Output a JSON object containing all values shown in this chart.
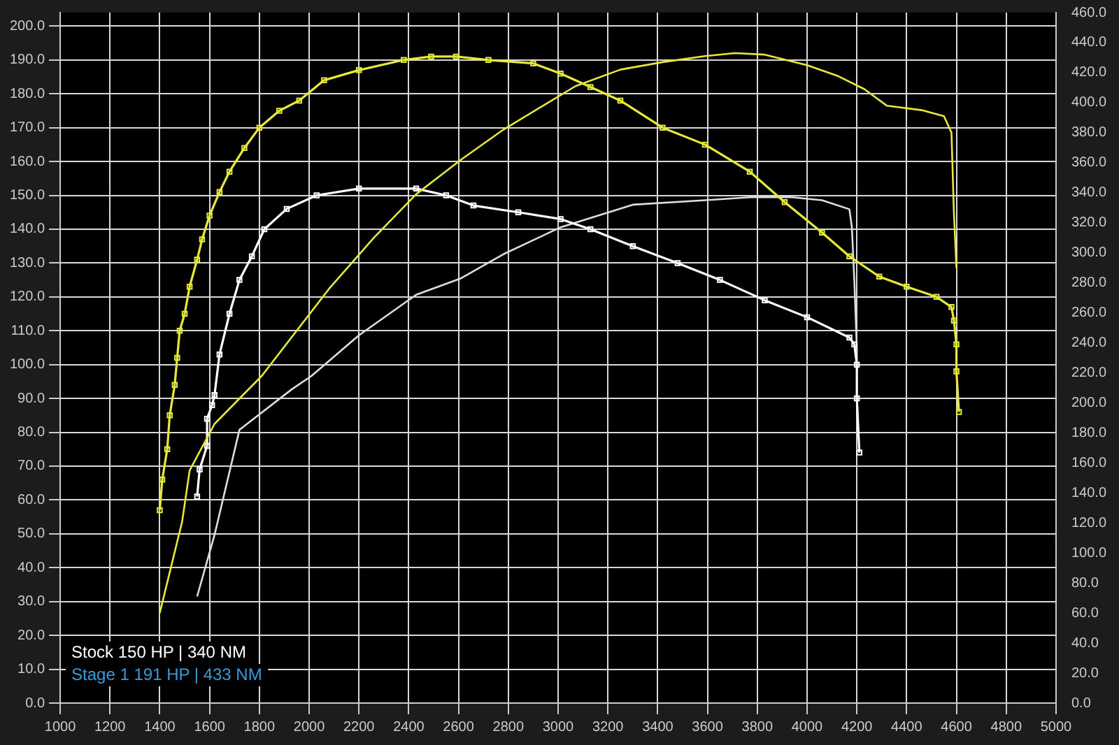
{
  "chart_data": {
    "type": "line",
    "xlim": [
      1000,
      5000
    ],
    "xticks": [
      1000,
      1200,
      1400,
      1600,
      1800,
      2000,
      2200,
      2400,
      2600,
      2800,
      3000,
      3200,
      3400,
      3600,
      3800,
      4000,
      4200,
      4400,
      4600,
      4800,
      5000
    ],
    "ylim": [
      0,
      204
    ],
    "yticks": [
      {
        "value": 0,
        "label": "0.0"
      },
      {
        "value": 10,
        "label": "10.0"
      },
      {
        "value": 20,
        "label": "20.0"
      },
      {
        "value": 30,
        "label": "30.0"
      },
      {
        "value": 40,
        "label": "40.0"
      },
      {
        "value": 50,
        "label": "50.0"
      },
      {
        "value": 60,
        "label": "60.0"
      },
      {
        "value": 70,
        "label": "70.0"
      },
      {
        "value": 80,
        "label": "80.0"
      },
      {
        "value": 90,
        "label": "90.0"
      },
      {
        "value": 100,
        "label": "100.0"
      },
      {
        "value": 110,
        "label": "110.0"
      },
      {
        "value": 120,
        "label": "120.0"
      },
      {
        "value": 130,
        "label": "130.0"
      },
      {
        "value": 140,
        "label": "140.0"
      },
      {
        "value": 150,
        "label": "150.0"
      },
      {
        "value": 160,
        "label": "160.0"
      },
      {
        "value": 170,
        "label": "170.0"
      },
      {
        "value": 180,
        "label": "180.0"
      },
      {
        "value": 190,
        "label": "190.0"
      },
      {
        "value": 200,
        "label": "200.0"
      }
    ],
    "y2lim": [
      0,
      460
    ],
    "y2ticks": [
      {
        "value": 0,
        "label": "0.0"
      },
      {
        "value": 20,
        "label": "20.0"
      },
      {
        "value": 40,
        "label": "40.0"
      },
      {
        "value": 60,
        "label": "60.0"
      },
      {
        "value": 80,
        "label": "80.0"
      },
      {
        "value": 100,
        "label": "100.0"
      },
      {
        "value": 120,
        "label": "120.0"
      },
      {
        "value": 140,
        "label": "140.0"
      },
      {
        "value": 160,
        "label": "160.0"
      },
      {
        "value": 180,
        "label": "180.0"
      },
      {
        "value": 200,
        "label": "200.0"
      },
      {
        "value": 220,
        "label": "220.0"
      },
      {
        "value": 240,
        "label": "240.0"
      },
      {
        "value": 260,
        "label": "260.0"
      },
      {
        "value": 280,
        "label": "280.0"
      },
      {
        "value": 300,
        "label": "300.0"
      },
      {
        "value": 320,
        "label": "320.0"
      },
      {
        "value": 340,
        "label": "340.0"
      },
      {
        "value": 360,
        "label": "360.0"
      },
      {
        "value": 380,
        "label": "380.0"
      },
      {
        "value": 400,
        "label": "400.0"
      },
      {
        "value": 420,
        "label": "420.0"
      },
      {
        "value": 440,
        "label": "440.0"
      },
      {
        "value": 460,
        "label": "460.0"
      }
    ],
    "grid": true,
    "legend": false,
    "annotations": [
      "Stock 150 HP | 340 NM",
      "Stage 1 191 HP | 433 NM"
    ],
    "series": [
      {
        "color": "#e8e83a",
        "marker": "square",
        "x": [
          1400,
          1410,
          1430,
          1440,
          1460,
          1470,
          1480,
          1500,
          1520,
          1550,
          1570,
          1600,
          1640,
          1680,
          1740,
          1800,
          1880,
          1960,
          2060,
          2200,
          2380,
          2490,
          2590,
          2720,
          2900,
          3010,
          3130,
          3250,
          3420,
          3590,
          3770,
          3910,
          4060,
          4170,
          4290,
          4400,
          4520,
          4580,
          4590,
          4600,
          4600,
          4610
        ],
        "values": [
          57,
          66,
          75,
          85,
          94,
          102,
          110,
          115,
          123,
          131,
          137,
          144,
          151,
          157,
          164,
          170,
          175,
          178,
          184,
          187,
          190,
          191,
          191,
          190,
          189,
          186,
          182,
          178,
          170,
          165,
          157,
          148,
          139,
          132,
          126,
          123,
          120,
          117,
          113,
          106,
          98,
          86
        ]
      },
      {
        "color": "#e8e83a",
        "marker": "none",
        "axis": "y2",
        "x": [
          1400,
          1490,
          1520,
          1620,
          1810,
          2080,
          2260,
          2430,
          2610,
          2780,
          2960,
          3070,
          3250,
          3420,
          3590,
          3710,
          3830,
          4000,
          4120,
          4230,
          4320,
          4460,
          4550,
          4580,
          4590,
          4600
        ],
        "values": [
          60,
          121,
          155,
          186,
          218,
          276,
          310,
          339,
          362,
          382,
          400,
          411,
          422,
          427,
          431,
          433,
          432,
          425,
          418,
          409,
          398,
          395,
          391,
          380,
          326,
          290
        ]
      },
      {
        "color": "#ffffff",
        "marker": "square",
        "x": [
          1550,
          1560,
          1590,
          1590,
          1610,
          1620,
          1640,
          1680,
          1720,
          1770,
          1820,
          1910,
          2030,
          2200,
          2430,
          2550,
          2660,
          2840,
          3010,
          3130,
          3300,
          3480,
          3650,
          3830,
          4000,
          4170,
          4190,
          4200,
          4200,
          4210
        ],
        "values": [
          61,
          69,
          76,
          84,
          88,
          91,
          103,
          115,
          125,
          132,
          140,
          146,
          150,
          152,
          152,
          150,
          147,
          145,
          143,
          140,
          135,
          130,
          125,
          119,
          114,
          108,
          106,
          100,
          90,
          74
        ]
      },
      {
        "color": "#dddddd",
        "marker": "none",
        "axis": "y2",
        "x": [
          1550,
          1620,
          1720,
          1930,
          2010,
          2200,
          2430,
          2610,
          2780,
          3010,
          3300,
          3590,
          3770,
          3940,
          4060,
          4170,
          4180,
          4190,
          4200,
          4200
        ],
        "values": [
          71,
          112,
          182,
          209,
          218,
          245,
          272,
          283,
          299,
          317,
          332,
          335,
          337,
          337,
          335,
          329,
          317,
          281,
          236,
          222
        ]
      }
    ]
  }
}
